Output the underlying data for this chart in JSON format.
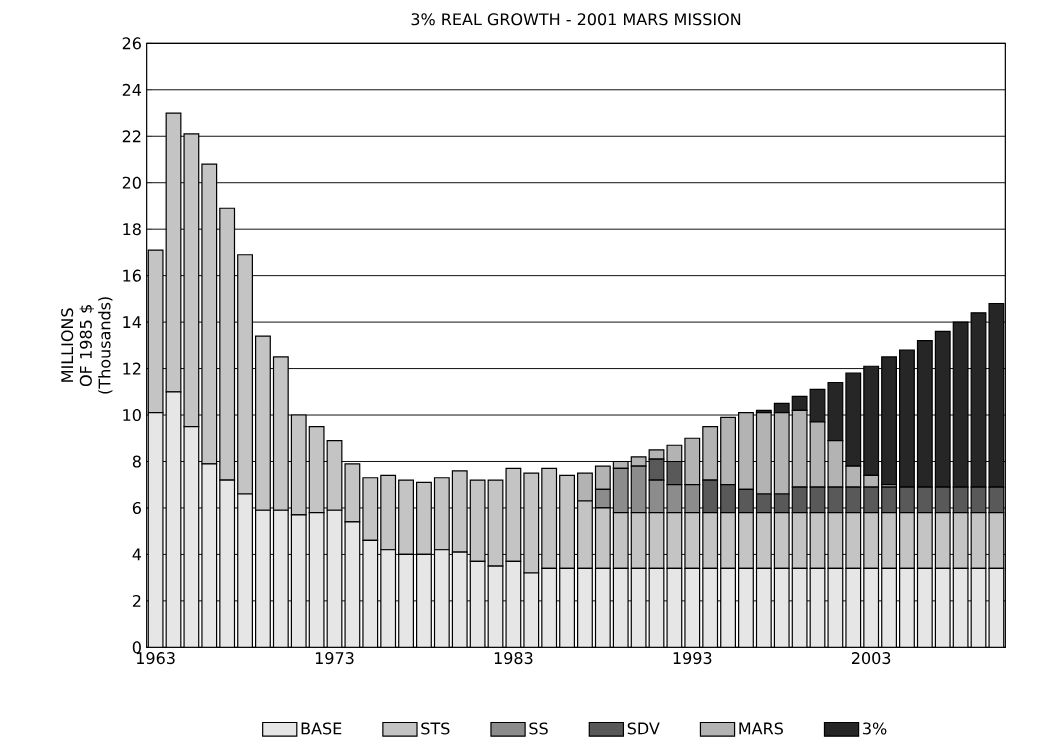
{
  "chart_data": {
    "type": "bar",
    "stacked": true,
    "title": "3% REAL GROWTH - 2001 MARS MISSION",
    "ylabel": "MILLIONS OF 1985 $ (Thousands)",
    "categories": [
      "1963",
      null,
      null,
      null,
      null,
      null,
      null,
      null,
      null,
      null,
      "1973",
      null,
      null,
      null,
      null,
      null,
      null,
      null,
      null,
      null,
      "1983",
      null,
      null,
      null,
      null,
      null,
      null,
      null,
      null,
      null,
      "1993",
      null,
      null,
      null,
      null,
      null,
      null,
      null,
      null,
      null,
      "2003",
      null,
      null,
      null,
      null,
      null,
      null,
      null
    ],
    "series": [
      {
        "name": "BASE",
        "color": "#e6e6e6",
        "values": [
          10.1,
          11.0,
          9.5,
          7.9,
          7.2,
          6.6,
          5.9,
          5.9,
          5.7,
          5.8,
          5.9,
          5.4,
          4.6,
          4.2,
          4.0,
          4.0,
          4.2,
          4.1,
          3.7,
          3.5,
          3.7,
          3.2,
          3.4,
          3.4,
          3.4,
          3.4,
          3.4,
          3.4,
          3.4,
          3.4,
          3.4,
          3.4,
          3.4,
          3.4,
          3.4,
          3.4,
          3.4,
          3.4,
          3.4,
          3.4,
          3.4,
          3.4,
          3.4,
          3.4,
          3.4,
          3.4,
          3.4,
          3.4
        ]
      },
      {
        "name": "STS",
        "color": "#c4c4c4",
        "values": [
          7.0,
          12.0,
          12.6,
          12.9,
          11.7,
          10.3,
          7.5,
          6.6,
          4.3,
          3.7,
          3.0,
          2.5,
          2.7,
          3.2,
          3.2,
          3.1,
          3.1,
          3.5,
          3.5,
          3.7,
          4.0,
          4.3,
          4.3,
          4.0,
          2.9,
          2.6,
          2.4,
          2.4,
          2.4,
          2.4,
          2.4,
          2.4,
          2.4,
          2.4,
          2.4,
          2.4,
          2.4,
          2.4,
          2.4,
          2.4,
          2.4,
          2.4,
          2.4,
          2.4,
          2.4,
          2.4,
          2.4,
          2.4
        ]
      },
      {
        "name": "SS",
        "color": "#8c8c8c",
        "values": [
          0,
          0,
          0,
          0,
          0,
          0,
          0,
          0,
          0,
          0,
          0,
          0,
          0,
          0,
          0,
          0,
          0,
          0,
          0,
          0,
          0,
          0,
          0,
          0,
          0,
          0.8,
          1.9,
          2.0,
          1.4,
          1.2,
          1.2,
          0,
          0,
          0,
          0,
          0,
          0,
          0,
          0,
          0,
          0,
          0,
          0,
          0,
          0,
          0,
          0,
          0
        ]
      },
      {
        "name": "SDV",
        "color": "#595959",
        "values": [
          0,
          0,
          0,
          0,
          0,
          0,
          0,
          0,
          0,
          0,
          0,
          0,
          0,
          0,
          0,
          0,
          0,
          0,
          0,
          0,
          0,
          0,
          0,
          0,
          0,
          0,
          0,
          0,
          0.9,
          1.0,
          0,
          1.4,
          1.2,
          1.0,
          0.8,
          0.8,
          1.1,
          1.1,
          1.1,
          1.1,
          1.1,
          1.1,
          1.1,
          1.1,
          1.1,
          1.1,
          1.1,
          1.1
        ]
      },
      {
        "name": "MARS",
        "color": "#b3b3b3",
        "values": [
          0,
          0,
          0,
          0,
          0,
          0,
          0,
          0,
          0,
          0,
          0,
          0,
          0,
          0,
          0,
          0,
          0,
          0,
          0,
          0,
          0,
          0,
          0,
          0,
          1.2,
          1.0,
          0.3,
          0.4,
          0.4,
          0.7,
          2.0,
          2.3,
          2.9,
          3.3,
          3.5,
          3.5,
          3.3,
          2.8,
          2.0,
          0.9,
          0.5,
          0.1,
          0,
          0,
          0,
          0,
          0,
          0
        ]
      },
      {
        "name": "3%",
        "color": "#262626",
        "values": [
          0,
          0,
          0,
          0,
          0,
          0,
          0,
          0,
          0,
          0,
          0,
          0,
          0,
          0,
          0,
          0,
          0,
          0,
          0,
          0,
          0,
          0,
          0,
          0,
          0,
          0,
          0,
          0,
          0,
          0,
          0,
          0,
          0,
          0,
          0.1,
          0.4,
          0.6,
          1.4,
          2.5,
          4.0,
          4.7,
          5.5,
          5.9,
          6.3,
          6.7,
          7.1,
          7.5,
          7.9
        ]
      }
    ],
    "ylim": [
      0,
      26
    ],
    "yticks": [
      0,
      2,
      4,
      6,
      8,
      10,
      12,
      14,
      16,
      18,
      20,
      22,
      24,
      26
    ],
    "grid": "y",
    "legend": "bottom"
  }
}
